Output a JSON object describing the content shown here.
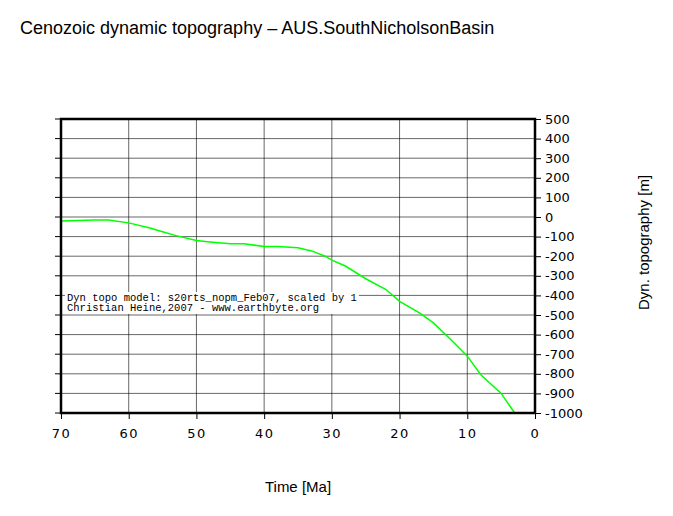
{
  "chart_data": {
    "type": "line",
    "title": "Cenozoic dynamic topography – AUS.SouthNicholsonBasin",
    "x_label": "Time [Ma]",
    "y_label": "Dyn. topography [m]",
    "annotations": [
      "Dyn topo model: s20rts_nopm_Feb07, scaled by 1",
      "Christian Heine,2007 - www.earthbyte.org"
    ],
    "x": [
      70,
      65,
      63,
      60,
      57,
      55,
      53,
      50,
      48,
      45,
      43,
      40,
      38,
      35,
      33,
      31,
      30,
      28,
      25,
      22,
      20,
      17,
      15,
      12,
      10,
      8,
      5,
      3
    ],
    "series": [
      {
        "color": "#00ff00",
        "values": [
          -20,
          -15,
          -15,
          -30,
          -55,
          -75,
          -95,
          -120,
          -127,
          -137,
          -137,
          -150,
          -150,
          -157,
          -173,
          -200,
          -220,
          -250,
          -315,
          -370,
          -430,
          -490,
          -540,
          -640,
          -710,
          -805,
          -900,
          -1000
        ]
      }
    ],
    "xlim": [
      70,
      0
    ],
    "ylim": [
      -1000,
      500
    ],
    "xticks": [
      70,
      60,
      50,
      40,
      30,
      20,
      10,
      0
    ],
    "yticks": [
      500,
      400,
      300,
      200,
      100,
      0,
      -100,
      -200,
      -300,
      -400,
      -500,
      -600,
      -700,
      -800,
      -900,
      -1000
    ],
    "grid": true
  }
}
